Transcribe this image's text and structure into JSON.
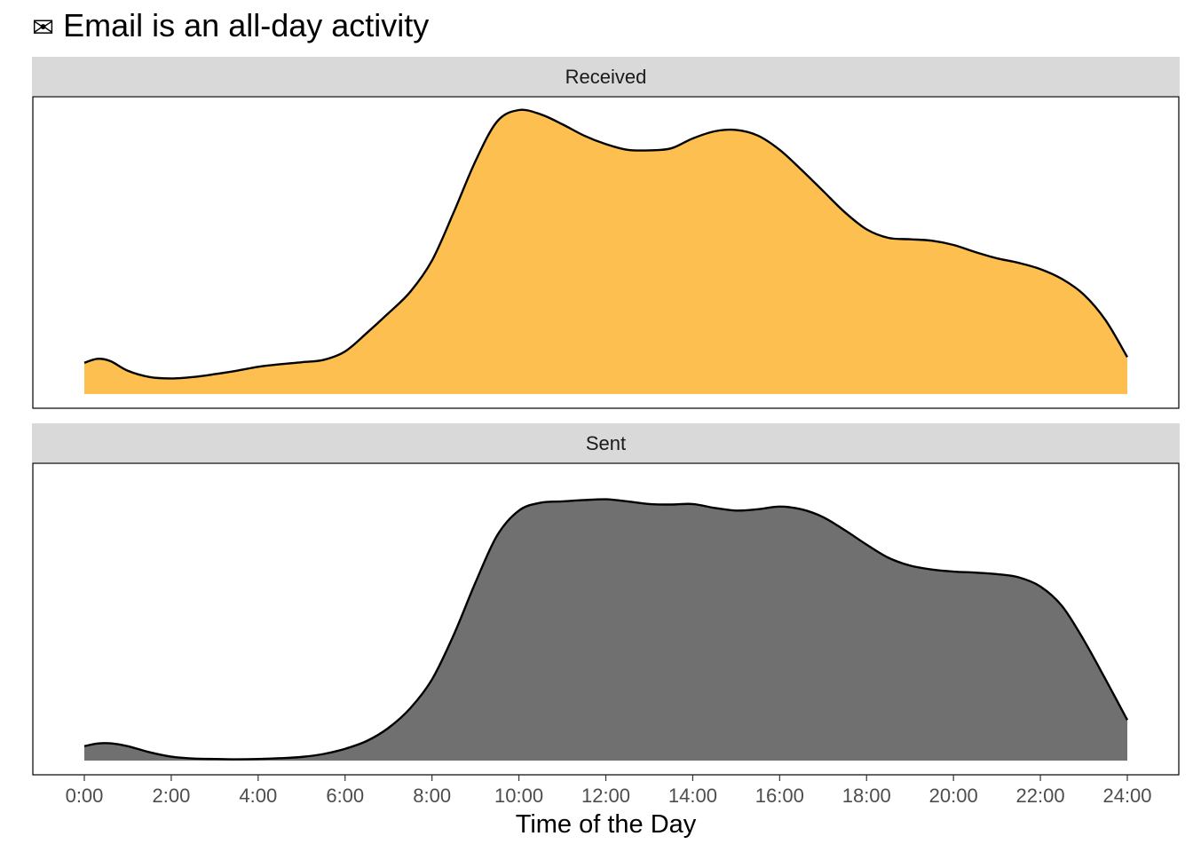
{
  "title": {
    "icon": "envelope-icon",
    "icon_glyph": "✉",
    "text": "Email is an all-day activity"
  },
  "chart_data": {
    "type": "area",
    "title": "Email is an all-day activity",
    "xlabel": "Time of the Day",
    "ylabel": "",
    "x_unit": "hours",
    "xlim": [
      0,
      24
    ],
    "x_ticks": [
      0,
      2,
      4,
      6,
      8,
      10,
      12,
      14,
      16,
      18,
      20,
      22,
      24
    ],
    "x_tick_labels": [
      "0:00",
      "2:00",
      "4:00",
      "6:00",
      "8:00",
      "10:00",
      "12:00",
      "14:00",
      "16:00",
      "18:00",
      "20:00",
      "22:00",
      "24:00"
    ],
    "y_axis_shown": false,
    "grid": false,
    "legend": "none",
    "facets": [
      {
        "label": "Received",
        "fill": "#fdbf4f",
        "stroke": "#000000",
        "x": [
          0,
          0.3,
          0.6,
          1,
          1.5,
          2,
          2.5,
          3,
          3.5,
          4,
          4.5,
          5,
          5.5,
          6,
          6.5,
          7,
          7.5,
          8,
          8.5,
          9,
          9.5,
          10,
          10.5,
          11,
          11.5,
          12,
          12.5,
          13,
          13.5,
          14,
          14.5,
          15,
          15.5,
          16,
          16.5,
          17,
          17.5,
          18,
          18.5,
          19,
          19.5,
          20,
          20.5,
          21,
          21.5,
          22,
          22.5,
          23,
          23.5,
          24
        ],
        "y": [
          0.11,
          0.124,
          0.116,
          0.082,
          0.06,
          0.055,
          0.06,
          0.07,
          0.082,
          0.096,
          0.105,
          0.112,
          0.12,
          0.15,
          0.215,
          0.285,
          0.36,
          0.47,
          0.64,
          0.82,
          0.96,
          1.0,
          0.985,
          0.95,
          0.91,
          0.88,
          0.86,
          0.858,
          0.865,
          0.9,
          0.925,
          0.93,
          0.91,
          0.86,
          0.79,
          0.715,
          0.64,
          0.58,
          0.55,
          0.545,
          0.54,
          0.525,
          0.5,
          0.478,
          0.462,
          0.44,
          0.405,
          0.35,
          0.26,
          0.13
        ]
      },
      {
        "label": "Sent",
        "fill": "#707070",
        "stroke": "#000000",
        "x": [
          0,
          0.3,
          0.6,
          1,
          1.5,
          2,
          2.5,
          3,
          3.5,
          4,
          4.5,
          5,
          5.5,
          6,
          6.5,
          7,
          7.5,
          8,
          8.5,
          9,
          9.5,
          10,
          10.5,
          11,
          11.5,
          12,
          12.5,
          13,
          13.5,
          14,
          14.5,
          15,
          15.5,
          16,
          16.5,
          17,
          17.5,
          18,
          18.5,
          19,
          19.5,
          20,
          20.5,
          21,
          21.5,
          22,
          22.5,
          23,
          23.5,
          24
        ],
        "y": [
          0.055,
          0.065,
          0.066,
          0.055,
          0.032,
          0.015,
          0.008,
          0.006,
          0.005,
          0.006,
          0.009,
          0.014,
          0.025,
          0.045,
          0.075,
          0.125,
          0.2,
          0.31,
          0.48,
          0.68,
          0.86,
          0.955,
          0.985,
          0.99,
          0.995,
          0.998,
          0.99,
          0.98,
          0.978,
          0.98,
          0.965,
          0.955,
          0.96,
          0.97,
          0.96,
          0.93,
          0.88,
          0.825,
          0.775,
          0.745,
          0.73,
          0.722,
          0.718,
          0.712,
          0.7,
          0.665,
          0.59,
          0.46,
          0.31,
          0.155
        ]
      }
    ]
  }
}
